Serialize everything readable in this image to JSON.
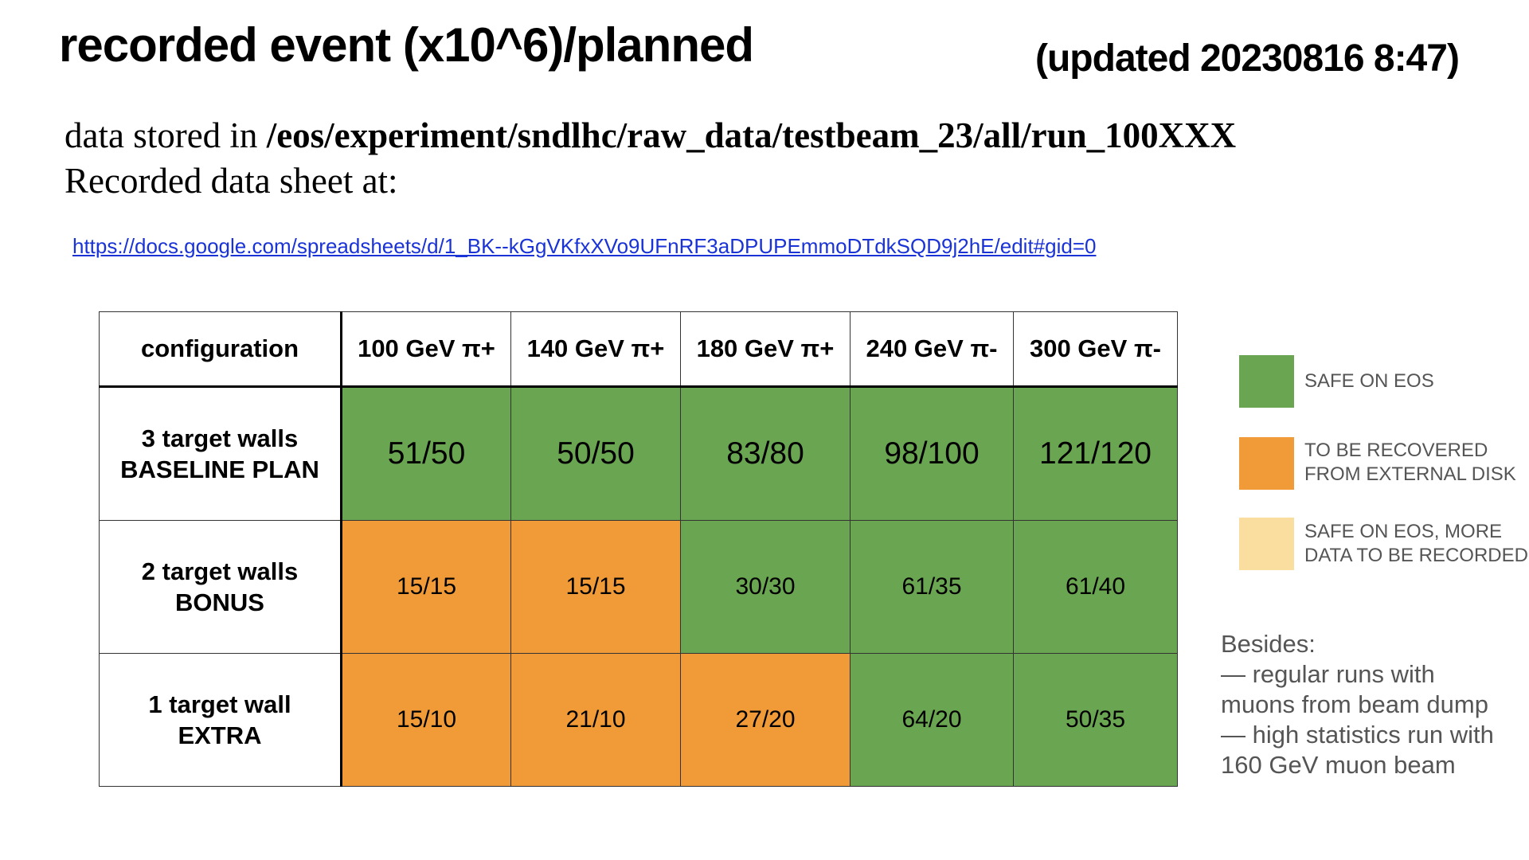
{
  "header": {
    "title": "recorded event (x10^6)/planned",
    "updated": "(updated 20230816 8:47)"
  },
  "info": {
    "stored_prefix": "data stored in ",
    "stored_path": "/eos/experiment/sndlhc/raw_data/testbeam_23/all/run_100XXX",
    "sheet_text": "Recorded data sheet at:",
    "link": "https://docs.google.com/spreadsheets/d/1_BK--kGgVKfxXVo9UFnRF3aDPUPEmmoDTdkSQD9j2hE/edit#gid=0"
  },
  "table": {
    "headers": [
      "configuration",
      "100 GeV π+",
      "140 GeV π+",
      "180 GeV π+",
      "240 GeV π-",
      "300 GeV π-"
    ],
    "rows": [
      {
        "config_line1": "3 target walls",
        "config_line2": "BASELINE PLAN",
        "cells": [
          {
            "value": "51/50",
            "status": "green"
          },
          {
            "value": "50/50",
            "status": "green"
          },
          {
            "value": "83/80",
            "status": "green"
          },
          {
            "value": "98/100",
            "status": "green"
          },
          {
            "value": "121/120",
            "status": "green"
          }
        ]
      },
      {
        "config_line1": "2 target walls",
        "config_line2": "BONUS",
        "cells": [
          {
            "value": "15/15",
            "status": "orange"
          },
          {
            "value": "15/15",
            "status": "orange"
          },
          {
            "value": "30/30",
            "status": "green"
          },
          {
            "value": "61/35",
            "status": "green"
          },
          {
            "value": "61/40",
            "status": "green"
          }
        ]
      },
      {
        "config_line1": "1 target wall",
        "config_line2": "EXTRA",
        "cells": [
          {
            "value": "15/10",
            "status": "orange"
          },
          {
            "value": "21/10",
            "status": "orange"
          },
          {
            "value": "27/20",
            "status": "orange"
          },
          {
            "value": "64/20",
            "status": "green"
          },
          {
            "value": "50/35",
            "status": "green"
          }
        ]
      }
    ]
  },
  "legend": {
    "colors": {
      "green": "#6aa552",
      "orange": "#f09b38",
      "light": "#f9dea0"
    },
    "safe": "SAFE ON EOS",
    "recover_line1": "TO BE RECOVERED",
    "recover_line2": "FROM EXTERNAL DISK",
    "more_line1": "SAFE ON EOS,  MORE",
    "more_line2": "DATA TO BE RECORDED"
  },
  "besides": {
    "line1": "Besides:",
    "line2": "— regular runs with",
    "line3": "muons from beam dump",
    "line4": "— high statistics run with",
    "line5": "160 GeV muon beam"
  }
}
